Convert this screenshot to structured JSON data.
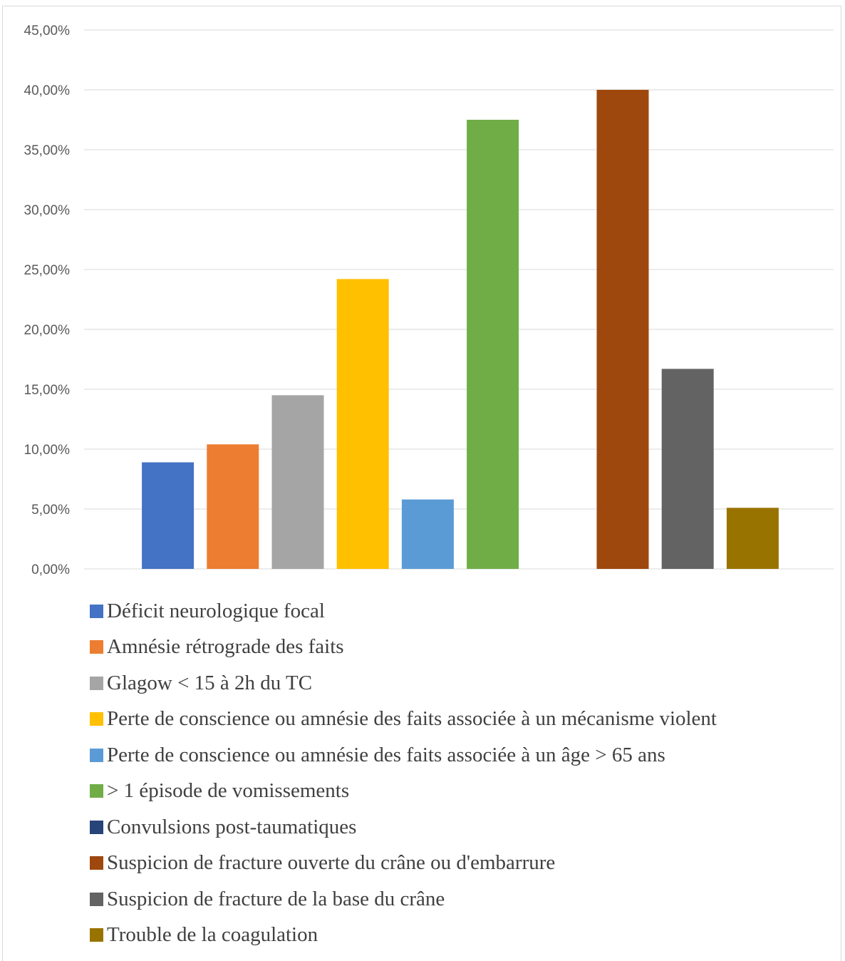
{
  "chart_data": {
    "type": "bar",
    "title": "",
    "xlabel": "",
    "ylabel": "",
    "ylim": [
      0,
      45
    ],
    "y_ticks": [
      0,
      5,
      10,
      15,
      20,
      25,
      30,
      35,
      40,
      45
    ],
    "y_tick_labels": [
      "0,00%",
      "5,00%",
      "10,00%",
      "15,00%",
      "20,00%",
      "25,00%",
      "30,00%",
      "35,00%",
      "40,00%",
      "45,00%"
    ],
    "grid": true,
    "legend_position": "bottom",
    "series": [
      {
        "name": "Déficit neurologique focal",
        "value": 8.9,
        "color": "#4472C4"
      },
      {
        "name": "Amnésie rétrograde des faits",
        "value": 10.4,
        "color": "#ED7D31"
      },
      {
        "name": "Glagow < 15 à 2h du TC",
        "value": 14.5,
        "color": "#A5A5A5"
      },
      {
        "name": "Perte de conscience ou amnésie des faits associée à un mécanisme violent",
        "value": 24.2,
        "color": "#FFC000"
      },
      {
        "name": "Perte de conscience ou amnésie des faits associée à un âge > 65 ans",
        "value": 5.8,
        "color": "#5B9BD5"
      },
      {
        "name": "> 1 épisode de vomissements",
        "value": 37.5,
        "color": "#70AD47"
      },
      {
        "name": "Convulsions post-taumatiques",
        "value": 0,
        "color": "#264478"
      },
      {
        "name": "Suspicion de fracture ouverte du crâne ou d'embarrure",
        "value": 40.0,
        "color": "#9E480E"
      },
      {
        "name": "Suspicion de fracture de la base du crâne",
        "value": 16.7,
        "color": "#636363"
      },
      {
        "name": "Trouble de la coagulation",
        "value": 5.1,
        "color": "#997300"
      }
    ]
  }
}
